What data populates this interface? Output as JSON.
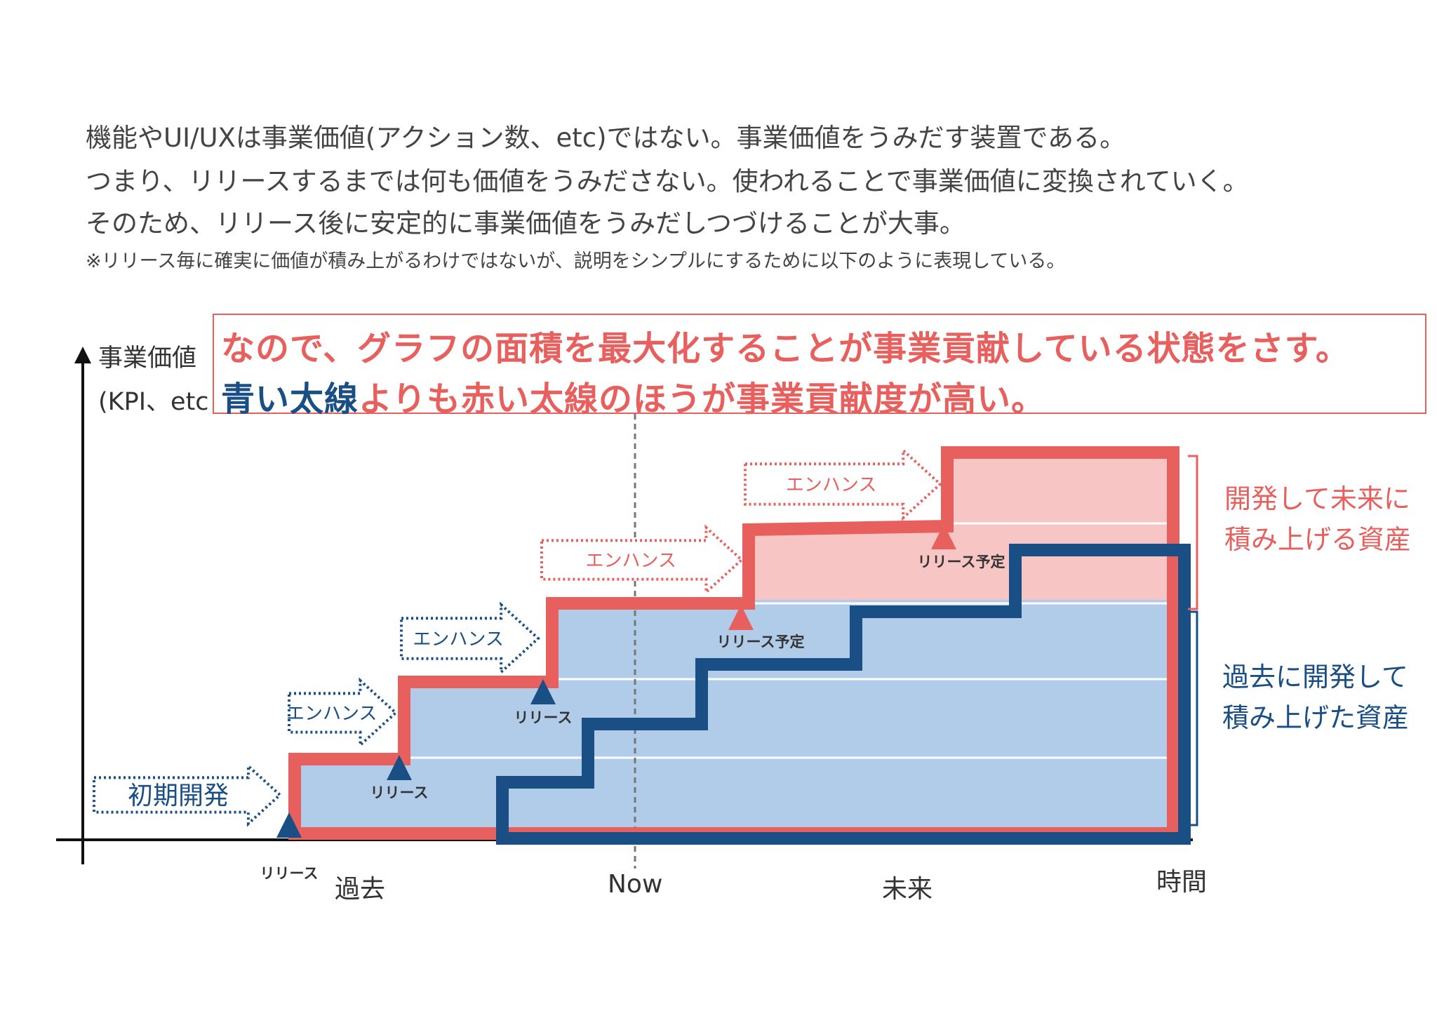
{
  "intro": {
    "line1": "機能やUI/UXは事業価値(アクション数、etc)ではない。事業価値をうみだす装置である。",
    "line2": "つまり、リリースするまでは何も価値をうみださない。使われることで事業価値に変換されていく。",
    "line3": "そのため、リリース後に安定的に事業価値をうみだしつづけることが大事。",
    "note": "※リリース毎に確実に価値が積み上がるわけではないが、説明をシンプルにするために以下のように表現している。"
  },
  "callout": {
    "line1": "なので、グラフの面積を最大化することが事業貢献している状態をさす。",
    "line2_blue": "青い太線",
    "line2_rest": "よりも赤い太線のほうが事業貢献度が高い。"
  },
  "axis": {
    "y_label_1": "事業価値",
    "y_label_2": "(KPI、etc",
    "x_past": "過去",
    "x_now": "Now",
    "x_future": "未来",
    "x_time": "時間"
  },
  "side_labels": {
    "future_assets_1": "開発して未来に",
    "future_assets_2": "積み上げる資産",
    "past_assets_1": "過去に開発して",
    "past_assets_2": "積み上げた資産"
  },
  "arrows": {
    "initial": "初期開発",
    "enhance": "エンハンス"
  },
  "markers": {
    "release": "リリース",
    "planned": "リリース予定"
  },
  "colors": {
    "red": "#e8605e",
    "blue": "#1a4f85",
    "past_fill": "#b0cce8",
    "future_fill": "#f7c6c4",
    "text": "#444444"
  }
}
